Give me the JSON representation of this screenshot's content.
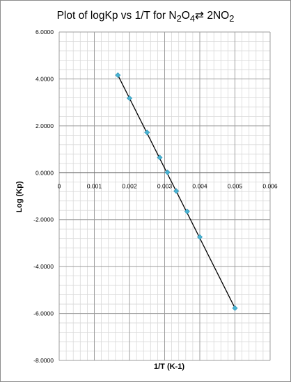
{
  "chart_data": {
    "type": "scatter",
    "title_main": "Plot of logKp vs 1/T for N",
    "title_sub_1": "2",
    "title_o": "O",
    "title_sub_2": "4",
    "title_equilibrium_symbol": "⇄",
    "title_product": " 2NO",
    "title_sub_3": "2",
    "xlabel": "1/T (K-1)",
    "ylabel": "Log (Kp)",
    "xlim": [
      0,
      0.006
    ],
    "ylim": [
      -8,
      6
    ],
    "x_ticks": [
      0,
      0.001,
      0.002,
      0.003,
      0.004,
      0.005,
      0.006
    ],
    "x_tick_labels": [
      "0",
      "0.001",
      "0.002",
      "0.003",
      "0.004",
      "0.005",
      "0.006"
    ],
    "y_ticks": [
      6,
      4,
      2,
      0,
      -2,
      -4,
      -6,
      -8
    ],
    "y_tick_labels": [
      "6.0000",
      "4.0000",
      "2.0000",
      "0.0000",
      "-2.0000",
      "-4.0000",
      "-6.0000",
      "-8.0000"
    ],
    "grid": true,
    "marker_color": "#4ab3d3",
    "line_color": "#000000",
    "series": [
      {
        "x": [
          0.00167,
          0.002,
          0.0025,
          0.00286,
          0.00308,
          0.00333,
          0.00364,
          0.004,
          0.005
        ],
        "y": [
          4.16,
          3.18,
          1.72,
          0.65,
          0.02,
          -0.78,
          -1.65,
          -2.74,
          -5.77
        ]
      }
    ],
    "trendline": {
      "x": [
        0.00167,
        0.005
      ],
      "y": [
        4.16,
        -5.77
      ]
    }
  }
}
